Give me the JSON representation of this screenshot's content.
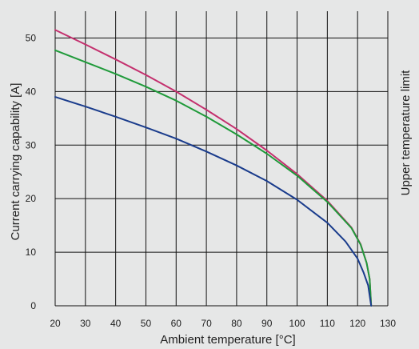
{
  "chart_data": {
    "type": "line",
    "xlabel": "Ambient temperature [°C]",
    "ylabel": "Current carrying capability [A]",
    "side_label": "Upper temperature limit",
    "xlim": [
      20,
      130
    ],
    "ylim": [
      0,
      55
    ],
    "x_ticks": [
      20,
      30,
      40,
      50,
      60,
      70,
      80,
      90,
      100,
      110,
      120,
      130
    ],
    "y_ticks": [
      0,
      10,
      20,
      30,
      40,
      50
    ],
    "grid": true,
    "background_color": "#e6e7e7",
    "series": [
      {
        "color": "#c4306e",
        "x": [
          20,
          30,
          40,
          50,
          60,
          70,
          80,
          90,
          100,
          110,
          118,
          121,
          123,
          124,
          124.5
        ],
        "y": [
          51.5,
          48.8,
          46.0,
          43.1,
          40.0,
          36.6,
          33.0,
          29.0,
          24.6,
          19.6,
          14.6,
          11.5,
          8.0,
          5.0,
          0
        ]
      },
      {
        "color": "#1f9a3a",
        "x": [
          20,
          30,
          40,
          50,
          60,
          70,
          80,
          90,
          100,
          110,
          118,
          121,
          123,
          124,
          124.5
        ],
        "y": [
          47.7,
          45.5,
          43.3,
          40.9,
          38.3,
          35.3,
          32.0,
          28.4,
          24.3,
          19.4,
          14.5,
          11.4,
          8.0,
          5.0,
          0
        ]
      },
      {
        "color": "#1a3c8c",
        "x": [
          20,
          30,
          40,
          50,
          60,
          70,
          80,
          90,
          100,
          110,
          116,
          120,
          122,
          123.5,
          124.5
        ],
        "y": [
          39.0,
          37.2,
          35.3,
          33.3,
          31.2,
          28.8,
          26.2,
          23.3,
          19.8,
          15.5,
          12.0,
          8.8,
          6.2,
          3.8,
          0
        ]
      }
    ]
  }
}
